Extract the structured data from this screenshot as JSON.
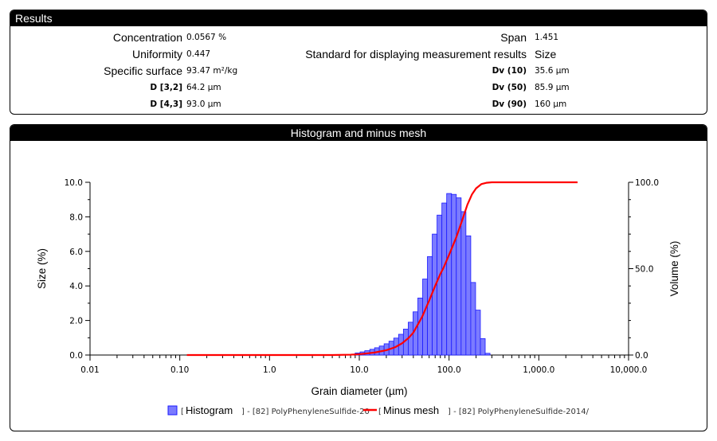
{
  "results": {
    "title": "Results",
    "left": [
      {
        "label": "Concentration",
        "value": "0.0567 %",
        "style": "big"
      },
      {
        "label": "Uniformity",
        "value": "0.447",
        "style": "big"
      },
      {
        "label": "Specific surface",
        "value": "93.47 m²/kg",
        "style": "big"
      },
      {
        "label": "D [3,2]",
        "value": "64.2 µm",
        "style": "small"
      },
      {
        "label": "D [4,3]",
        "value": "93.0 µm",
        "style": "small"
      }
    ],
    "right": [
      {
        "label": "Span",
        "value": "1.451",
        "style": "big",
        "value_style": "small"
      },
      {
        "label": "Standard for displaying measurement results",
        "value": "Size",
        "style": "big",
        "value_style": "big"
      },
      {
        "label": "Dv (10)",
        "value": "35.6 µm",
        "style": "small",
        "value_style": "small"
      },
      {
        "label": "Dv (50)",
        "value": "85.9 µm",
        "style": "small",
        "value_style": "small"
      },
      {
        "label": "Dv (90)",
        "value": "160 µm",
        "style": "small",
        "value_style": "small"
      }
    ]
  },
  "chart_panel": {
    "title": "Histogram and minus mesh"
  },
  "chart_data": {
    "type": "bar",
    "title": "Histogram and minus mesh",
    "xlabel": "Grain diameter (µm)",
    "ylabel": "Size (%)",
    "y2label": "Volume (%)",
    "x_scale": "log",
    "xlim": [
      0.01,
      10000
    ],
    "ylim": [
      0,
      10
    ],
    "y2lim": [
      0,
      100
    ],
    "x_ticks": [
      0.01,
      0.1,
      1,
      10,
      100,
      1000,
      10000
    ],
    "x_tick_labels": [
      "0.01",
      "0.10",
      "1.0",
      "10.0",
      "100.0",
      "1,000.0",
      "10,000.0"
    ],
    "y_ticks": [
      0,
      2,
      4,
      6,
      8,
      10
    ],
    "y_tick_labels": [
      "0.0",
      "2.0",
      "4.0",
      "6.0",
      "8.0",
      "10.0"
    ],
    "y2_ticks": [
      0,
      50,
      100
    ],
    "y2_tick_labels": [
      "0.0",
      "50.0",
      "100.0"
    ],
    "grid": false,
    "legend_position": "bottom",
    "histogram": {
      "name_prefix": "[",
      "name": "Histogram",
      "name_suffix": "] - [82] PolyPhenyleneSulfide-20",
      "color": "#7b7bff",
      "stroke": "#1a1aff",
      "bin_edges": [
        9.0,
        10.2,
        11.5,
        13.1,
        14.8,
        16.7,
        18.9,
        21.4,
        24.2,
        27.4,
        31.0,
        35.1,
        39.7,
        44.9,
        50.8,
        57.4,
        65.0,
        73.5,
        83.2,
        94.1,
        106.5,
        120.5,
        136.3,
        154.2,
        174.5,
        197.4,
        223.3,
        252.7,
        285.9,
        323.5
      ],
      "values": [
        0.12,
        0.18,
        0.25,
        0.33,
        0.42,
        0.52,
        0.65,
        0.8,
        0.98,
        1.2,
        1.5,
        1.9,
        2.5,
        3.3,
        4.4,
        5.7,
        7.0,
        8.1,
        8.8,
        9.35,
        9.3,
        9.1,
        8.3,
        6.9,
        4.2,
        2.6,
        0.95,
        0.1,
        0.0
      ]
    },
    "minus_mesh": {
      "name_prefix": "[",
      "name": "Minus mesh",
      "name_suffix": "] - [82] PolyPhenyleneSulfide-2014/",
      "color": "#ff0000",
      "x": [
        0.12,
        0.5,
        1,
        5,
        8,
        10,
        12,
        15,
        20,
        25,
        30,
        35.6,
        40,
        50,
        60,
        70,
        80,
        85.9,
        100,
        120,
        140,
        160,
        180,
        200,
        230,
        260,
        300,
        400,
        1000,
        2700
      ],
      "y": [
        0,
        0,
        0,
        0,
        0.2,
        0.5,
        0.9,
        1.5,
        2.8,
        4.5,
        6.8,
        10,
        13,
        22,
        31.5,
        40,
        47,
        50,
        58,
        68,
        78,
        87,
        93,
        96.5,
        99,
        99.7,
        100,
        100,
        100,
        100
      ]
    }
  }
}
